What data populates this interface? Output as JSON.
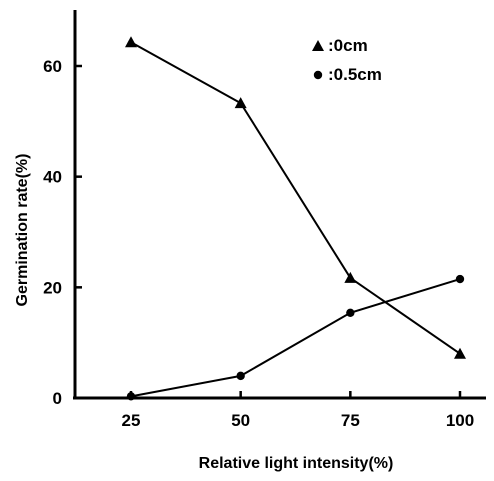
{
  "chart_data": {
    "type": "line",
    "title": "",
    "xlabel": "Relative light intensity(%)",
    "ylabel": "Germination rate(%)",
    "x": [
      25,
      50,
      75,
      100
    ],
    "xlim": [
      0,
      100
    ],
    "ylim": [
      0,
      70
    ],
    "x_ticks": [
      "25",
      "50",
      "75",
      "100"
    ],
    "y_ticks": [
      "0",
      "20",
      "40",
      "60"
    ],
    "grid": false,
    "legend_position": "top-right",
    "series": [
      {
        "name": ":0cm",
        "marker": "triangle",
        "values": [
          64.3,
          53.3,
          21.7,
          8.0
        ]
      },
      {
        "name": ":0.5cm",
        "marker": "circle",
        "values": [
          0.3,
          4.0,
          15.4,
          21.5
        ]
      }
    ]
  }
}
